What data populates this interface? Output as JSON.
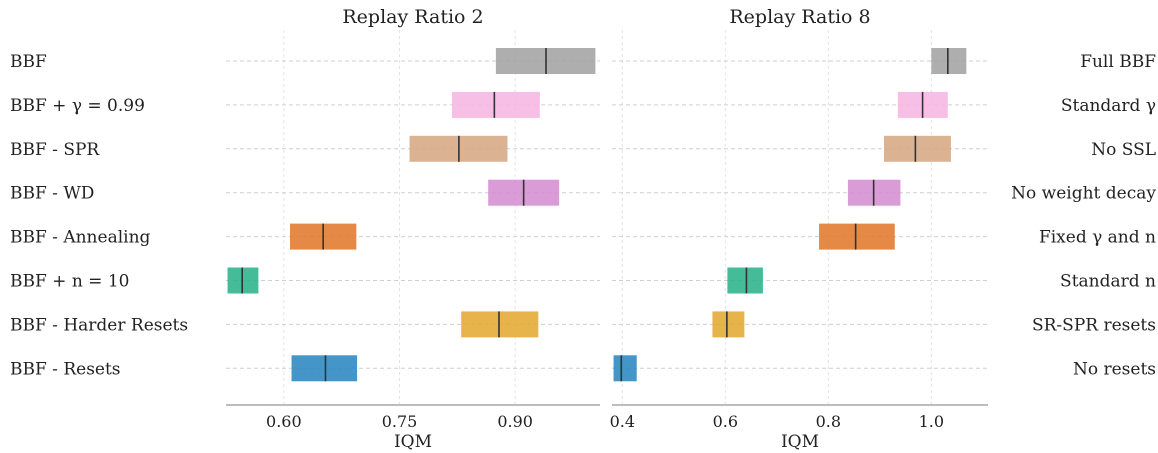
{
  "chart_data": [
    {
      "type": "bar",
      "title": "Replay Ratio 2",
      "xlabel": "IQM",
      "xlim": [
        0.525,
        1.01
      ],
      "xticks": [
        0.6,
        0.75,
        0.9
      ],
      "xtick_labels": [
        "0.60",
        "0.75",
        "0.90"
      ],
      "grid": true,
      "categories": [
        "BBF",
        "BBF + γ = 0.99",
        "BBF - SPR",
        "BBF - WD",
        "BBF - Annealing",
        "BBF + n = 10",
        "BBF - Harder Resets",
        "BBF - Resets"
      ],
      "series": [
        {
          "iqm": [
            0.94,
            0.873,
            0.827,
            0.911,
            0.651,
            0.546,
            0.879,
            0.654
          ],
          "low": [
            0.875,
            0.818,
            0.763,
            0.865,
            0.608,
            0.527,
            0.83,
            0.61
          ],
          "high": [
            1.004,
            0.932,
            0.89,
            0.957,
            0.694,
            0.567,
            0.93,
            0.695
          ],
          "colors": [
            "#a3a3a3",
            "#f7b6e3",
            "#d7a983",
            "#d48ed0",
            "#e07a2c",
            "#2bb38a",
            "#e4a832",
            "#2a87c2"
          ]
        }
      ]
    },
    {
      "type": "bar",
      "title": "Replay Ratio 8",
      "xlabel": "IQM",
      "xlim": [
        0.38,
        1.11
      ],
      "xticks": [
        0.4,
        0.6,
        0.8,
        1.0
      ],
      "xtick_labels": [
        "0.4",
        "0.6",
        "0.8",
        "1.0"
      ],
      "grid": true,
      "categories": [
        "Full BBF",
        "Standard γ",
        "No SSL",
        "No weight decay",
        "Fixed γ and n",
        "Standard n",
        "SR-SPR resets",
        "No resets"
      ],
      "series": [
        {
          "iqm": [
            1.032,
            0.983,
            0.969,
            0.888,
            0.853,
            0.641,
            0.603,
            0.398
          ],
          "low": [
            1.0,
            0.935,
            0.908,
            0.838,
            0.782,
            0.604,
            0.575,
            0.383
          ],
          "high": [
            1.068,
            1.032,
            1.038,
            0.94,
            0.929,
            0.673,
            0.637,
            0.428
          ],
          "colors": [
            "#a3a3a3",
            "#f7b6e3",
            "#d7a983",
            "#d48ed0",
            "#e07a2c",
            "#2bb38a",
            "#e4a832",
            "#2a87c2"
          ]
        }
      ]
    }
  ]
}
